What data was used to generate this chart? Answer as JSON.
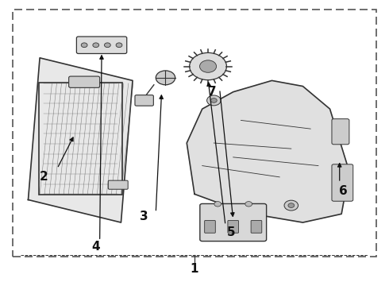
{
  "background_color": "#ffffff",
  "line_color": "#333333",
  "label_color": "#111111",
  "fig_width": 4.9,
  "fig_height": 3.6,
  "dpi": 100
}
